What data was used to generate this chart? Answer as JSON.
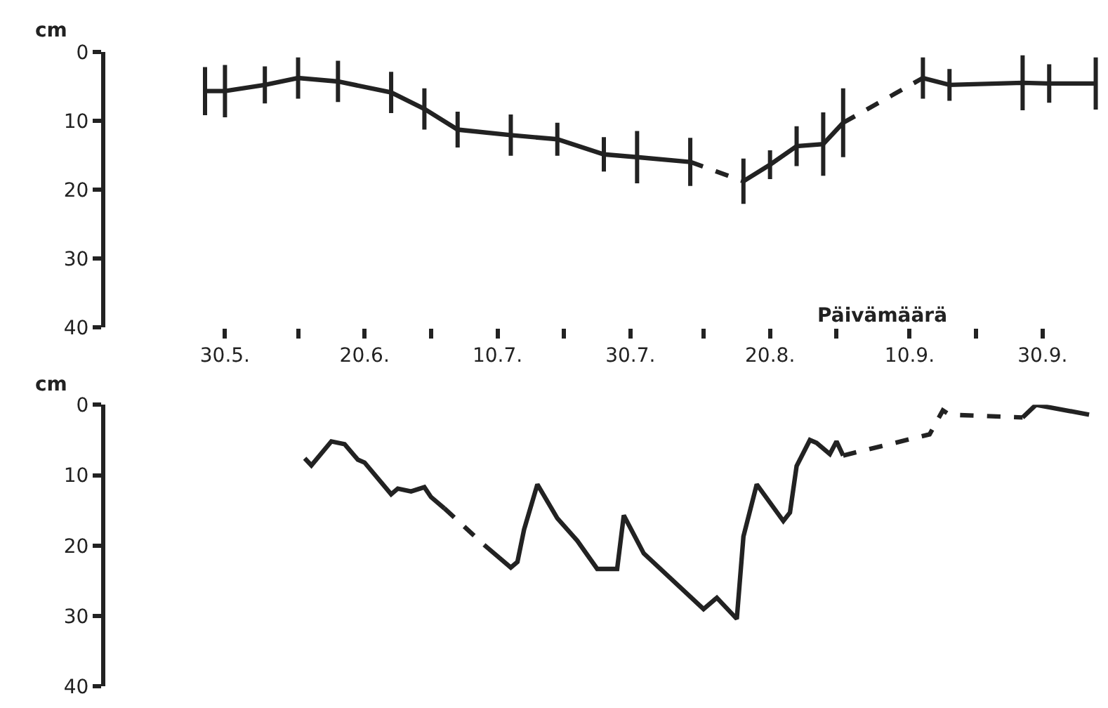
{
  "chart_data": [
    {
      "type": "line",
      "ylabel": "cm",
      "xlabel": "Päivämäärä",
      "xlim": [
        "--05-12",
        "--10-09"
      ],
      "ylim": [
        40,
        0
      ],
      "yticks": [
        0,
        10,
        20,
        30,
        40
      ],
      "xticks": [
        {
          "value": "--05-30",
          "label": "30.5."
        },
        {
          "value": "--06-10",
          "label": null
        },
        {
          "value": "--06-20",
          "label": "20.6."
        },
        {
          "value": "--06-30",
          "label": null
        },
        {
          "value": "--07-10",
          "label": "10.7."
        },
        {
          "value": "--07-20",
          "label": null
        },
        {
          "value": "--07-30",
          "label": "30.7."
        },
        {
          "value": "--08-10",
          "label": null
        },
        {
          "value": "--08-20",
          "label": "20.8."
        },
        {
          "value": "--08-30",
          "label": null
        },
        {
          "value": "--09-10",
          "label": "10.9."
        },
        {
          "value": "--09-20",
          "label": null
        },
        {
          "value": "--09-30",
          "label": "30.9."
        }
      ],
      "marker": "none",
      "series": [
        {
          "color": "#222222",
          "line_style": "solid",
          "x": [
            "--05-27",
            "--05-30",
            "--06-05",
            "--06-10",
            "--06-16",
            "--06-24",
            "--06-29",
            "--07-04",
            "--07-12",
            "--07-19",
            "--07-26",
            "--07-31",
            "--08-08"
          ],
          "values": [
            5.7,
            5.7,
            4.8,
            3.8,
            4.3,
            5.9,
            8.3,
            11.3,
            12.1,
            12.7,
            14.9,
            15.3,
            16.0
          ],
          "errors": [
            3.5,
            3.8,
            2.7,
            3,
            3,
            3,
            3,
            2.6,
            3,
            2.4,
            2.5,
            3.8,
            3.5
          ]
        },
        {
          "color": "#222222",
          "line_style": "dashed",
          "x": [
            "--08-08",
            "--08-16"
          ],
          "values": [
            16.0,
            18.8
          ]
        },
        {
          "color": "#222222",
          "line_style": "solid",
          "x": [
            "--08-16",
            "--08-20",
            "--08-24",
            "--08-28",
            "--08-31"
          ],
          "values": [
            18.8,
            16.4,
            13.7,
            13.4,
            10.3
          ],
          "errors": [
            3.3,
            2.1,
            2.9,
            4.6,
            5
          ]
        },
        {
          "color": "#222222",
          "line_style": "dashed",
          "x": [
            "--08-31",
            "--09-12"
          ],
          "values": [
            10.3,
            3.8
          ]
        },
        {
          "color": "#222222",
          "line_style": "solid",
          "x": [
            "--09-12",
            "--09-16",
            "--09-27",
            "--10-01",
            "--10-08"
          ],
          "values": [
            3.8,
            4.8,
            4.5,
            4.6,
            4.6
          ],
          "errors": [
            3,
            2.3,
            4,
            2.8,
            3.8
          ]
        }
      ]
    },
    {
      "type": "line",
      "ylabel": "cm",
      "xlim": [
        "--05-12",
        "--10-09"
      ],
      "ylim": [
        40,
        0
      ],
      "yticks": [
        0,
        10,
        20,
        30,
        40
      ],
      "tick_labels": "y",
      "marker": "none",
      "series": [
        {
          "color": "#222222",
          "line_style": "solid",
          "x": [
            "--06-11",
            "--06-12",
            "--06-15",
            "--06-17",
            "--06-19",
            "--06-20",
            "--06-24",
            "--06-25",
            "--06-27",
            "--06-29",
            "--06-30",
            "--07-02"
          ],
          "values": [
            7.6,
            8.6,
            5.2,
            5.6,
            7.8,
            8.2,
            12.7,
            11.9,
            12.3,
            11.7,
            13.1,
            14.7
          ]
        },
        {
          "color": "#222222",
          "line_style": "dashed",
          "x": [
            "--07-02",
            "--07-08"
          ],
          "values": [
            14.7,
            19.9
          ]
        },
        {
          "color": "#222222",
          "line_style": "solid",
          "x": [
            "--07-08",
            "--07-12",
            "--07-13",
            "--07-14",
            "--07-16",
            "--07-19",
            "--07-22",
            "--07-25",
            "--07-28",
            "--07-29",
            "--08-01",
            "--08-10",
            "--08-12",
            "--08-15",
            "--08-16",
            "--08-18",
            "--08-22",
            "--08-23",
            "--08-24",
            "--08-26",
            "--08-27",
            "--08-29",
            "--08-30",
            "--08-31"
          ],
          "values": [
            19.9,
            23.1,
            22.3,
            17.7,
            11.3,
            16.1,
            19.3,
            23.3,
            23.3,
            15.7,
            21.1,
            29.0,
            27.4,
            30.4,
            18.7,
            11.3,
            16.5,
            15.3,
            8.7,
            5.0,
            5.4,
            7.0,
            5.2,
            7.2
          ]
        },
        {
          "color": "#222222",
          "line_style": "dashed",
          "x": [
            "--08-31",
            "--09-13",
            "--09-15",
            "--09-16",
            "--09-27"
          ],
          "values": [
            7.2,
            4.2,
            0.8,
            1.4,
            1.8
          ]
        },
        {
          "color": "#222222",
          "line_style": "solid",
          "x": [
            "--09-27",
            "--09-29",
            "--10-07"
          ],
          "values": [
            1.8,
            0,
            1.4
          ]
        }
      ]
    }
  ]
}
